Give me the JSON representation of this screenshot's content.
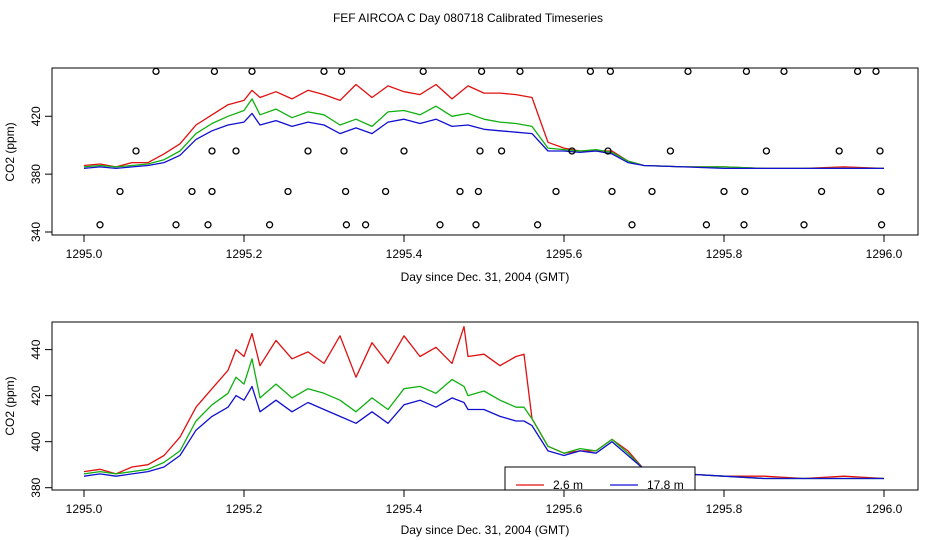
{
  "figure": {
    "title": "FEF AIRCOA C  Day 080718  Calibrated Timeseries"
  },
  "colors": {
    "series_2_6m": "#e01010",
    "series_green": "#10b010",
    "series_17_8m": "#1010d0",
    "axis": "#000000"
  },
  "chart_data": [
    {
      "type": "line",
      "xlabel": "Day since Dec. 31, 2004 (GMT)",
      "ylabel": "CO2 (ppm)",
      "xlim": [
        1295.0,
        1296.0
      ],
      "ylim": [
        340,
        452
      ],
      "xticks": [
        1295.0,
        1295.2,
        1295.4,
        1295.6,
        1295.8,
        1296.0
      ],
      "xtick_labels": [
        "1295.0",
        "1295.2",
        "1295.4",
        "1295.6",
        "1295.8",
        "1296.0"
      ],
      "yticks": [
        340,
        380,
        420
      ],
      "ytick_labels": [
        "340",
        "380",
        "420"
      ],
      "grid": false,
      "x": [
        1295.0,
        1295.02,
        1295.04,
        1295.06,
        1295.08,
        1295.1,
        1295.12,
        1295.14,
        1295.16,
        1295.18,
        1295.2,
        1295.21,
        1295.22,
        1295.24,
        1295.26,
        1295.28,
        1295.3,
        1295.32,
        1295.34,
        1295.36,
        1295.38,
        1295.4,
        1295.42,
        1295.44,
        1295.46,
        1295.48,
        1295.5,
        1295.52,
        1295.54,
        1295.56,
        1295.58,
        1295.6,
        1295.62,
        1295.64,
        1295.66,
        1295.68,
        1295.7,
        1295.75,
        1295.8,
        1295.85,
        1295.9,
        1295.95,
        1296.0
      ],
      "series": [
        {
          "color_key": "series_2_6m",
          "values": [
            386,
            387,
            385,
            388,
            388,
            394,
            401,
            414,
            421,
            428,
            431,
            438,
            433,
            437,
            432,
            438,
            435,
            431,
            442,
            433,
            441,
            437,
            435,
            442,
            432,
            441,
            436,
            436,
            435,
            433,
            402,
            398,
            396,
            396,
            396,
            389,
            386,
            385,
            385,
            384,
            384,
            385,
            384
          ]
        },
        {
          "series_color": "series_green",
          "values": [
            385,
            386,
            385,
            386,
            387,
            390,
            396,
            408,
            415,
            420,
            424,
            432,
            421,
            425,
            419,
            423,
            421,
            414,
            418,
            413,
            423,
            424,
            421,
            427,
            420,
            422,
            418,
            416,
            415,
            413,
            398,
            397,
            396,
            397,
            395,
            389,
            386,
            385,
            385,
            384,
            384,
            384,
            384
          ]
        },
        {
          "color_key": "series_17_8m",
          "values": [
            384,
            385,
            384,
            385,
            386,
            388,
            393,
            404,
            410,
            414,
            416,
            422,
            414,
            417,
            413,
            416,
            414,
            408,
            412,
            408,
            416,
            418,
            415,
            418,
            413,
            414,
            411,
            410,
            409,
            408,
            396,
            396,
            395,
            396,
            394,
            388,
            386,
            385,
            384,
            384,
            384,
            384,
            384
          ]
        }
      ],
      "points": {
        "x": [
          1295.02,
          1295.045,
          1295.065,
          1295.09,
          1295.115,
          1295.135,
          1295.155,
          1295.16,
          1295.16,
          1295.163,
          1295.19,
          1295.21,
          1295.232,
          1295.255,
          1295.28,
          1295.3,
          1295.322,
          1295.325,
          1295.327,
          1295.328,
          1295.352,
          1295.377,
          1295.4,
          1295.424,
          1295.445,
          1295.47,
          1295.49,
          1295.493,
          1295.495,
          1295.497,
          1295.522,
          1295.545,
          1295.567,
          1295.59,
          1295.61,
          1295.633,
          1295.655,
          1295.658,
          1295.66,
          1295.685,
          1295.71,
          1295.733,
          1295.755,
          1295.778,
          1295.8,
          1295.825,
          1295.826,
          1295.828,
          1295.853,
          1295.875,
          1295.9,
          1295.922,
          1295.944,
          1295.967,
          1295.99,
          1295.995,
          1295.996,
          1295.997
        ],
        "y": [
          345,
          368,
          396,
          451,
          345,
          368,
          345,
          368,
          396,
          451,
          396,
          451,
          345,
          368,
          396,
          451,
          451,
          396,
          368,
          345,
          345,
          368,
          396,
          451,
          345,
          368,
          345,
          368,
          396,
          451,
          396,
          451,
          345,
          368,
          396,
          451,
          396,
          451,
          368,
          345,
          368,
          396,
          451,
          345,
          368,
          345,
          368,
          451,
          396,
          451,
          345,
          368,
          396,
          451,
          451,
          396,
          368,
          345
        ]
      }
    },
    {
      "type": "line",
      "xlabel": "Day since Dec. 31, 2004 (GMT)",
      "ylabel": "CO2 (ppm)",
      "xlim": [
        1295.0,
        1296.0
      ],
      "ylim": [
        379,
        452
      ],
      "xticks": [
        1295.0,
        1295.2,
        1295.4,
        1295.6,
        1295.8,
        1296.0
      ],
      "xtick_labels": [
        "1295.0",
        "1295.2",
        "1295.4",
        "1295.6",
        "1295.8",
        "1296.0"
      ],
      "yticks": [
        380,
        400,
        420,
        440
      ],
      "ytick_labels": [
        "380",
        "400",
        "420",
        "440"
      ],
      "grid": false,
      "legend_position": "bottom-center",
      "x": [
        1295.0,
        1295.02,
        1295.04,
        1295.06,
        1295.08,
        1295.1,
        1295.12,
        1295.14,
        1295.16,
        1295.18,
        1295.19,
        1295.2,
        1295.21,
        1295.22,
        1295.24,
        1295.26,
        1295.28,
        1295.3,
        1295.32,
        1295.34,
        1295.36,
        1295.38,
        1295.4,
        1295.42,
        1295.44,
        1295.46,
        1295.475,
        1295.48,
        1295.5,
        1295.52,
        1295.54,
        1295.55,
        1295.56,
        1295.58,
        1295.6,
        1295.62,
        1295.64,
        1295.66,
        1295.68,
        1295.7,
        1295.75,
        1295.8,
        1295.85,
        1295.9,
        1295.95,
        1296.0
      ],
      "series": [
        {
          "name": "2.6 m",
          "color_key": "series_2_6m",
          "values": [
            387,
            388,
            386,
            389,
            390,
            394,
            402,
            415,
            423,
            431,
            440,
            437,
            447,
            433,
            444,
            436,
            439,
            434,
            446,
            428,
            443,
            434,
            446,
            437,
            441,
            434,
            450,
            437,
            438,
            433,
            437,
            438,
            410,
            398,
            395,
            396,
            396,
            401,
            396,
            388,
            386,
            385,
            385,
            384,
            385,
            384
          ]
        },
        {
          "name": "",
          "color_key": "series_green",
          "values": [
            386,
            387,
            386,
            387,
            388,
            391,
            396,
            409,
            416,
            421,
            428,
            425,
            436,
            419,
            425,
            419,
            423,
            421,
            418,
            413,
            419,
            414,
            423,
            424,
            421,
            427,
            424,
            420,
            422,
            418,
            415,
            415,
            410,
            398,
            395,
            397,
            396,
            401,
            395,
            388,
            386,
            385,
            384,
            384,
            384,
            384
          ]
        },
        {
          "name": "17.8 m",
          "color_key": "series_17_8m",
          "values": [
            385,
            386,
            385,
            386,
            387,
            389,
            394,
            405,
            411,
            415,
            420,
            418,
            424,
            413,
            418,
            413,
            417,
            414,
            411,
            408,
            413,
            408,
            416,
            418,
            415,
            419,
            417,
            414,
            414,
            411,
            409,
            409,
            407,
            396,
            394,
            396,
            395,
            400,
            394,
            388,
            386,
            385,
            384,
            384,
            384,
            384
          ]
        }
      ]
    }
  ]
}
